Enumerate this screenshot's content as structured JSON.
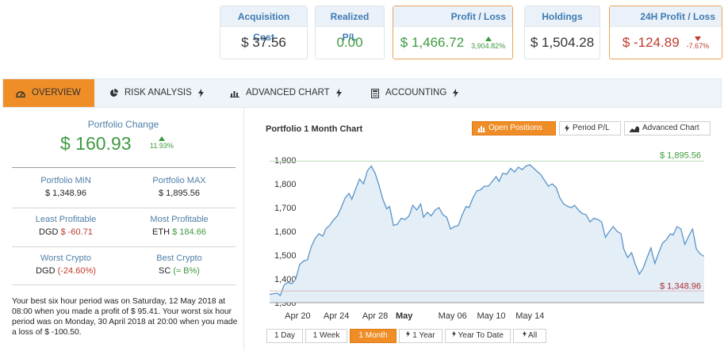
{
  "cards": {
    "acquisition": {
      "label": "Acquisition Cost",
      "value": "$ 37.56"
    },
    "realized": {
      "label": "Realized P/L",
      "value": "0.00"
    },
    "profit_loss": {
      "label": "Profit / Loss",
      "value": "$ 1,466.72",
      "pct": "3,904.82%"
    },
    "holdings": {
      "label": "Holdings",
      "value": "$ 1,504.28"
    },
    "profit_24h": {
      "label": "24H Profit / Loss",
      "value": "$ -124.89",
      "pct": "-7.67%"
    }
  },
  "tabs": [
    {
      "label": "OVERVIEW",
      "icon": "dashboard-icon"
    },
    {
      "label": "RISK ANALYSIS",
      "icon": "pie-chart-icon"
    },
    {
      "label": "ADVANCED CHART",
      "icon": "bar-chart-icon"
    },
    {
      "label": "ACCOUNTING",
      "icon": "calculator-icon"
    }
  ],
  "portfolio": {
    "change_label": "Portfolio Change",
    "change_value": "$ 160.93",
    "change_pct": "11.93%",
    "min_label": "Portfolio MIN",
    "min_value": "$ 1,348.96",
    "max_label": "Portfolio MAX",
    "max_value": "$ 1,895.56",
    "least_label": "Least Profitable",
    "least_coin": "DGD",
    "least_value": "$ -60.71",
    "most_label": "Most Profitable",
    "most_coin": "ETH",
    "most_value": "$ 184.66",
    "worst_label": "Worst Crypto",
    "worst_coin": "DGD",
    "worst_value": "(-24.60%)",
    "best_label": "Best Crypto",
    "best_coin": "SC",
    "best_value": "(≈ B%)",
    "note": "Your best six hour period was on Saturday, 12 May 2018 at 08:00 when you made a profit of $ 95.41. Your worst six hour period was on Monday, 30 April 2018 at 20:00 when you made a loss of $ -100.50."
  },
  "chart_panel": {
    "title": "Portfolio 1 Month Chart",
    "buttons": [
      "Open Positions",
      "Period P/L",
      "Advanced Chart"
    ],
    "ranges": [
      "1 Day",
      "1 Week",
      "1 Month",
      "1 Year",
      "Year To Date",
      "All"
    ],
    "active_range": "1 Month"
  },
  "chart_data": {
    "type": "area",
    "title": "",
    "xlabel": "",
    "ylabel": "",
    "ylim": [
      1300,
      1930
    ],
    "yticks": [
      1300,
      1400,
      1500,
      1600,
      1700,
      1800,
      1900
    ],
    "xticks": [
      {
        "label": "Apr 20",
        "x": 2.9,
        "bold": false
      },
      {
        "label": "Apr 24",
        "x": 6.9,
        "bold": false
      },
      {
        "label": "Apr 28",
        "x": 10.9,
        "bold": false
      },
      {
        "label": "May",
        "x": 13.9,
        "bold": true
      },
      {
        "label": "May 06",
        "x": 18.9,
        "bold": false
      },
      {
        "label": "May 10",
        "x": 22.9,
        "bold": false
      },
      {
        "label": "May 14",
        "x": 26.9,
        "bold": false
      }
    ],
    "max_line": {
      "value": 1895.56,
      "label": "$ 1,895.56",
      "color": "#3d9a3f"
    },
    "min_line": {
      "value": 1348.96,
      "label": "$ 1,348.96",
      "color": "#b03030"
    },
    "line_color": "#5b93c7",
    "fill_color": "#e3eef7",
    "points": [
      [
        0,
        1335
      ],
      [
        0.4,
        1338
      ],
      [
        0.8,
        1340
      ],
      [
        1.1,
        1330
      ],
      [
        1.5,
        1375
      ],
      [
        1.9,
        1385
      ],
      [
        2.3,
        1380
      ],
      [
        2.7,
        1400
      ],
      [
        3.1,
        1460
      ],
      [
        3.5,
        1475
      ],
      [
        3.9,
        1480
      ],
      [
        4.3,
        1535
      ],
      [
        4.7,
        1570
      ],
      [
        5.1,
        1590
      ],
      [
        5.5,
        1580
      ],
      [
        5.8,
        1610
      ],
      [
        6.2,
        1625
      ],
      [
        6.6,
        1648
      ],
      [
        7.0,
        1665
      ],
      [
        7.4,
        1700
      ],
      [
        7.8,
        1740
      ],
      [
        8.2,
        1760
      ],
      [
        8.5,
        1735
      ],
      [
        8.9,
        1780
      ],
      [
        9.3,
        1820
      ],
      [
        9.7,
        1800
      ],
      [
        10.1,
        1855
      ],
      [
        10.5,
        1875
      ],
      [
        10.9,
        1845
      ],
      [
        11.3,
        1795
      ],
      [
        11.7,
        1735
      ],
      [
        12.1,
        1695
      ],
      [
        12.4,
        1705
      ],
      [
        12.8,
        1625
      ],
      [
        13.2,
        1630
      ],
      [
        13.6,
        1655
      ],
      [
        14.0,
        1650
      ],
      [
        14.4,
        1665
      ],
      [
        14.8,
        1710
      ],
      [
        15.2,
        1690
      ],
      [
        15.6,
        1715
      ],
      [
        15.9,
        1660
      ],
      [
        16.3,
        1680
      ],
      [
        16.7,
        1665
      ],
      [
        17.1,
        1690
      ],
      [
        17.5,
        1700
      ],
      [
        17.9,
        1670
      ],
      [
        18.3,
        1660
      ],
      [
        18.7,
        1610
      ],
      [
        19.1,
        1620
      ],
      [
        19.5,
        1625
      ],
      [
        19.9,
        1670
      ],
      [
        20.3,
        1705
      ],
      [
        20.6,
        1700
      ],
      [
        21.0,
        1740
      ],
      [
        21.4,
        1770
      ],
      [
        21.8,
        1775
      ],
      [
        22.2,
        1790
      ],
      [
        22.6,
        1790
      ],
      [
        23.0,
        1810
      ],
      [
        23.4,
        1830
      ],
      [
        23.7,
        1810
      ],
      [
        24.1,
        1845
      ],
      [
        24.5,
        1840
      ],
      [
        24.9,
        1865
      ],
      [
        25.3,
        1850
      ],
      [
        25.7,
        1870
      ],
      [
        26.1,
        1860
      ],
      [
        26.5,
        1875
      ],
      [
        26.9,
        1880
      ],
      [
        27.3,
        1865
      ],
      [
        27.7,
        1850
      ],
      [
        28.0,
        1840
      ],
      [
        28.4,
        1815
      ],
      [
        28.8,
        1790
      ],
      [
        29.2,
        1800
      ],
      [
        29.6,
        1785
      ],
      [
        30.0,
        1740
      ],
      [
        30.4,
        1715
      ],
      [
        30.8,
        1705
      ],
      [
        31.2,
        1700
      ],
      [
        31.5,
        1710
      ],
      [
        31.9,
        1690
      ],
      [
        32.3,
        1675
      ],
      [
        32.7,
        1670
      ],
      [
        33.1,
        1640
      ],
      [
        33.5,
        1655
      ],
      [
        33.9,
        1650
      ],
      [
        34.3,
        1640
      ],
      [
        34.7,
        1575
      ],
      [
        35.1,
        1600
      ],
      [
        35.5,
        1620
      ],
      [
        35.9,
        1600
      ],
      [
        36.3,
        1590
      ],
      [
        36.6,
        1525
      ],
      [
        37.0,
        1490
      ],
      [
        37.4,
        1510
      ],
      [
        37.8,
        1460
      ],
      [
        38.2,
        1420
      ],
      [
        38.6,
        1445
      ],
      [
        39.0,
        1490
      ],
      [
        39.4,
        1530
      ],
      [
        39.8,
        1465
      ],
      [
        40.2,
        1510
      ],
      [
        40.6,
        1550
      ],
      [
        41.0,
        1565
      ],
      [
        41.4,
        1590
      ],
      [
        41.7,
        1585
      ],
      [
        42.1,
        1620
      ],
      [
        42.5,
        1610
      ],
      [
        42.9,
        1545
      ],
      [
        43.3,
        1580
      ],
      [
        43.7,
        1610
      ],
      [
        44.1,
        1525
      ],
      [
        44.5,
        1505
      ],
      [
        44.9,
        1495
      ]
    ]
  }
}
